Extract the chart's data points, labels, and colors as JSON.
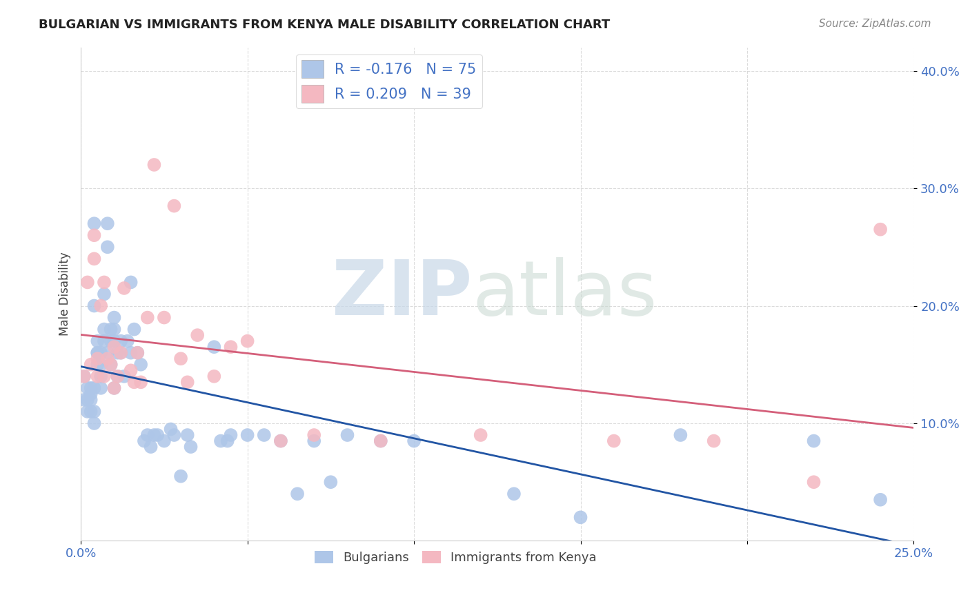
{
  "title": "BULGARIAN VS IMMIGRANTS FROM KENYA MALE DISABILITY CORRELATION CHART",
  "source": "Source: ZipAtlas.com",
  "ylabel": "Male Disability",
  "xlim": [
    0.0,
    0.25
  ],
  "ylim": [
    0.0,
    0.42
  ],
  "x_ticks": [
    0.0,
    0.05,
    0.1,
    0.15,
    0.2,
    0.25
  ],
  "y_ticks": [
    0.1,
    0.2,
    0.3,
    0.4
  ],
  "x_tick_labels": [
    "0.0%",
    "",
    "",
    "",
    "",
    "25.0%"
  ],
  "y_tick_labels": [
    "10.0%",
    "20.0%",
    "30.0%",
    "40.0%"
  ],
  "bulgarian_color": "#aec6e8",
  "kenya_color": "#f4b8c1",
  "bulgarian_line_color": "#2255a4",
  "kenya_line_color": "#d45f7a",
  "bulgarian_R": -0.176,
  "bulgarian_N": 75,
  "kenya_R": 0.209,
  "kenya_N": 39,
  "watermark_zip_color": "#c8d8e8",
  "watermark_atlas_color": "#c8d8d0",
  "bulgarian_x": [
    0.001,
    0.001,
    0.002,
    0.002,
    0.002,
    0.003,
    0.003,
    0.003,
    0.003,
    0.004,
    0.004,
    0.004,
    0.004,
    0.004,
    0.005,
    0.005,
    0.005,
    0.005,
    0.006,
    0.006,
    0.006,
    0.006,
    0.007,
    0.007,
    0.007,
    0.008,
    0.008,
    0.008,
    0.009,
    0.009,
    0.009,
    0.01,
    0.01,
    0.01,
    0.01,
    0.011,
    0.011,
    0.012,
    0.012,
    0.013,
    0.014,
    0.015,
    0.015,
    0.016,
    0.017,
    0.018,
    0.019,
    0.02,
    0.021,
    0.022,
    0.023,
    0.025,
    0.027,
    0.028,
    0.03,
    0.032,
    0.033,
    0.04,
    0.042,
    0.044,
    0.045,
    0.05,
    0.055,
    0.06,
    0.065,
    0.07,
    0.075,
    0.08,
    0.09,
    0.1,
    0.13,
    0.15,
    0.18,
    0.22,
    0.24
  ],
  "bulgarian_y": [
    0.14,
    0.12,
    0.13,
    0.11,
    0.12,
    0.125,
    0.13,
    0.11,
    0.12,
    0.2,
    0.27,
    0.13,
    0.11,
    0.1,
    0.16,
    0.17,
    0.16,
    0.15,
    0.15,
    0.16,
    0.14,
    0.13,
    0.17,
    0.21,
    0.18,
    0.27,
    0.25,
    0.16,
    0.17,
    0.18,
    0.15,
    0.17,
    0.18,
    0.19,
    0.13,
    0.16,
    0.14,
    0.17,
    0.16,
    0.14,
    0.17,
    0.22,
    0.16,
    0.18,
    0.16,
    0.15,
    0.085,
    0.09,
    0.08,
    0.09,
    0.09,
    0.085,
    0.095,
    0.09,
    0.055,
    0.09,
    0.08,
    0.165,
    0.085,
    0.085,
    0.09,
    0.09,
    0.09,
    0.085,
    0.04,
    0.085,
    0.05,
    0.09,
    0.085,
    0.085,
    0.04,
    0.02,
    0.09,
    0.085,
    0.035
  ],
  "kenya_x": [
    0.001,
    0.002,
    0.003,
    0.004,
    0.004,
    0.005,
    0.005,
    0.006,
    0.007,
    0.007,
    0.008,
    0.009,
    0.01,
    0.01,
    0.011,
    0.012,
    0.013,
    0.015,
    0.016,
    0.017,
    0.018,
    0.02,
    0.022,
    0.025,
    0.028,
    0.03,
    0.032,
    0.035,
    0.04,
    0.045,
    0.05,
    0.06,
    0.07,
    0.09,
    0.12,
    0.16,
    0.19,
    0.22,
    0.24
  ],
  "kenya_y": [
    0.14,
    0.22,
    0.15,
    0.24,
    0.26,
    0.155,
    0.14,
    0.2,
    0.22,
    0.14,
    0.155,
    0.15,
    0.13,
    0.165,
    0.14,
    0.16,
    0.215,
    0.145,
    0.135,
    0.16,
    0.135,
    0.19,
    0.32,
    0.19,
    0.285,
    0.155,
    0.135,
    0.175,
    0.14,
    0.165,
    0.17,
    0.085,
    0.09,
    0.085,
    0.09,
    0.085,
    0.085,
    0.05,
    0.265
  ]
}
